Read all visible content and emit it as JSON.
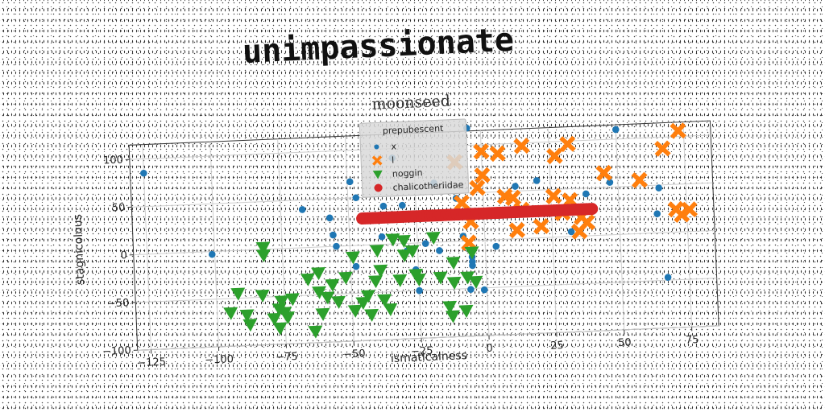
{
  "title": "unimpassionate",
  "chart_data": {
    "type": "scatter",
    "title": "moonseed",
    "xlabel": "ismaticalness",
    "ylabel": "stagnicolous",
    "xlim": [
      -130,
      85
    ],
    "ylim": [
      -100,
      115
    ],
    "xticks": [
      -125,
      -100,
      -75,
      -50,
      -25,
      0,
      25,
      50,
      75
    ],
    "xtick_labels": [
      "−125",
      "−100",
      "−75",
      "−50",
      "−25",
      "0",
      "25",
      "50",
      "75"
    ],
    "yticks": [
      -100,
      -50,
      0,
      50,
      100
    ],
    "ytick_labels": [
      "−100",
      "−50",
      "0",
      "50",
      "100"
    ],
    "grid": true,
    "legend": {
      "title": "prepubescent",
      "placement": "top-center"
    },
    "series": [
      {
        "name": "x",
        "marker": "circle",
        "color": "#1f77b4",
        "points": [
          [
            -125,
            85
          ],
          [
            -101,
            -3
          ],
          [
            -67,
            40
          ],
          [
            -57,
            30
          ],
          [
            -56,
            12
          ],
          [
            -55,
            0
          ],
          [
            -49,
            67
          ],
          [
            -48,
            -22
          ],
          [
            -47,
            50
          ],
          [
            -38,
            8
          ],
          [
            -37,
            40
          ],
          [
            -33,
            90
          ],
          [
            -30,
            40
          ],
          [
            -29,
            -8
          ],
          [
            -26,
            -28
          ],
          [
            -25,
            -50
          ],
          [
            -22,
            -1
          ],
          [
            -18,
            62
          ],
          [
            -17,
            -9
          ],
          [
            -10,
            45
          ],
          [
            -8,
            5
          ],
          [
            -5,
            -17
          ],
          [
            -5,
            -22
          ],
          [
            -5,
            -26
          ],
          [
            -5,
            118
          ],
          [
            -6,
            -51
          ],
          [
            -1,
            -52
          ],
          [
            4,
            -7
          ],
          [
            4,
            30
          ],
          [
            12,
            55
          ],
          [
            20,
            60
          ],
          [
            32,
            5
          ],
          [
            38,
            44
          ],
          [
            47,
            55
          ],
          [
            50,
            110
          ],
          [
            64,
            20
          ],
          [
            65,
            47
          ],
          [
            67,
            -47
          ]
        ]
      },
      {
        "name": "l",
        "marker": "x",
        "color": "#ff7f0e",
        "points": [
          [
            -10,
            83
          ],
          [
            -8,
            40
          ],
          [
            -6,
            -2
          ],
          [
            -5,
            20
          ],
          [
            -2,
            55
          ],
          [
            0,
            93
          ],
          [
            0,
            68
          ],
          [
            6,
            90
          ],
          [
            8,
            45
          ],
          [
            11,
            43
          ],
          [
            12,
            9
          ],
          [
            14,
            30
          ],
          [
            15,
            97
          ],
          [
            21,
            12
          ],
          [
            26,
            43
          ],
          [
            27,
            85
          ],
          [
            29,
            25
          ],
          [
            32,
            38
          ],
          [
            32,
            97
          ],
          [
            35,
            5
          ],
          [
            36,
            20
          ],
          [
            38,
            14
          ],
          [
            45,
            65
          ],
          [
            58,
            56
          ],
          [
            67,
            88
          ],
          [
            71,
            24
          ],
          [
            73,
            106
          ],
          [
            73,
            18
          ],
          [
            76,
            23
          ]
        ]
      },
      {
        "name": "noggin",
        "marker": "triangle-down",
        "color": "#2ca02c",
        "points": [
          [
            -95,
            -65
          ],
          [
            -92,
            -45
          ],
          [
            -89,
            -68
          ],
          [
            -88,
            -78
          ],
          [
            -83,
            -48
          ],
          [
            -82,
            -6
          ],
          [
            -82,
            2
          ],
          [
            -79,
            -73
          ],
          [
            -77,
            -83
          ],
          [
            -77,
            -63
          ],
          [
            -76,
            -55
          ],
          [
            -75,
            -67
          ],
          [
            -74,
            -72
          ],
          [
            -72,
            -53
          ],
          [
            -66,
            -33
          ],
          [
            -64,
            -88
          ],
          [
            -62,
            -47
          ],
          [
            -62,
            -27
          ],
          [
            -61,
            -70
          ],
          [
            -59,
            -53
          ],
          [
            -57,
            -40
          ],
          [
            -55,
            -58
          ],
          [
            -52,
            -33
          ],
          [
            -49,
            -12
          ],
          [
            -49,
            -68
          ],
          [
            -46,
            -60
          ],
          [
            -44,
            -53
          ],
          [
            -43,
            -73
          ],
          [
            -41,
            -38
          ],
          [
            -40,
            -6
          ],
          [
            -39,
            -27
          ],
          [
            -38,
            -58
          ],
          [
            -36,
            -68
          ],
          [
            -34,
            5
          ],
          [
            -32,
            -38
          ],
          [
            -30,
            3
          ],
          [
            -30,
            -12
          ],
          [
            -27,
            -8
          ],
          [
            -26,
            -33
          ],
          [
            -25,
            -38
          ],
          [
            -19,
            5
          ],
          [
            -17,
            -37
          ],
          [
            -14,
            -68
          ],
          [
            -13,
            -78
          ],
          [
            -12,
            -43
          ],
          [
            -12,
            -22
          ],
          [
            -8,
            -73
          ],
          [
            -7,
            -38
          ],
          [
            -5,
            -12
          ],
          [
            -4,
            -43
          ]
        ]
      },
      {
        "name": "chalicotheriidae",
        "marker": "circle",
        "color": "#d62728",
        "line": {
          "y": 28,
          "x_start": -45,
          "x_end": 40,
          "count": 86
        }
      }
    ]
  }
}
